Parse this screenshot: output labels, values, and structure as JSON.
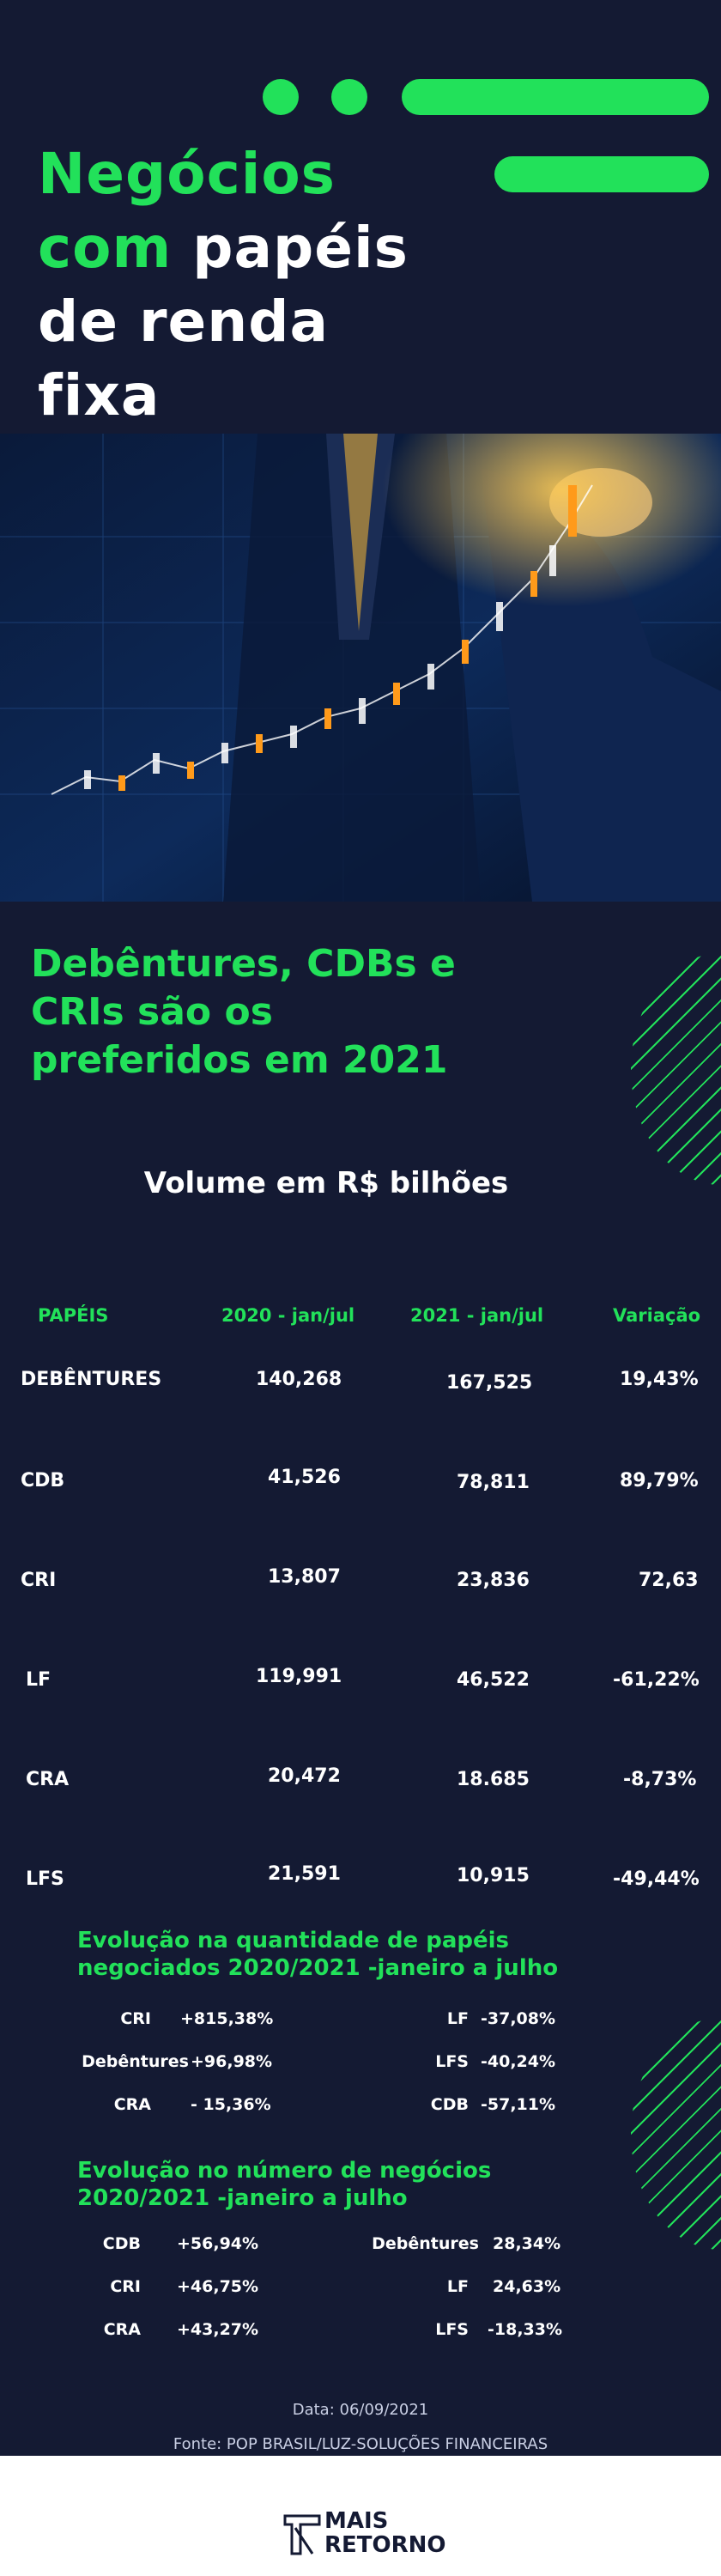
{
  "colors": {
    "background": "#141a33",
    "accent": "#22e15a",
    "text": "#ffffff"
  },
  "hero": {
    "title_line1": "Negócios",
    "title_line2_green": "com",
    "title_line2_white": "papéis",
    "title_line3": "de renda",
    "title_line4": "fixa"
  },
  "subtitle": {
    "line1": "Debêntures, CDBs e",
    "line2": "CRIs são os",
    "line3": "preferidos em 2021"
  },
  "table": {
    "title": "Volume em R$ bilhões",
    "headers": [
      "PAPÉIS",
      "2020 - jan/jul",
      "2021 - jan/jul",
      "Variação"
    ],
    "rows": [
      {
        "paper": "DEBÊNTURES",
        "v2020": "140,268",
        "v2021": "167,525",
        "var": "19,43%"
      },
      {
        "paper": "CDB",
        "v2020": "41,526",
        "v2021": "78,811",
        "var": "89,79%"
      },
      {
        "paper": "CRI",
        "v2020": "13,807",
        "v2021": "23,836",
        "var": "72,63"
      },
      {
        "paper": "LF",
        "v2020": "119,991",
        "v2021": "46,522",
        "var": "-61,22%"
      },
      {
        "paper": "CRA",
        "v2020": "20,472",
        "v2021": "18.685",
        "var": "-8,73%"
      },
      {
        "paper": "LFS",
        "v2020": "21,591",
        "v2021": "10,915",
        "var": "-49,44%"
      }
    ]
  },
  "quantity": {
    "title_line1": "Evolução na quantidade de papéis",
    "title_line2": "negociados 2020/2021 -janeiro a julho",
    "left": [
      {
        "name": "CRI",
        "value": "+815,38%"
      },
      {
        "name": "Debêntures",
        "value": "+96,98%"
      },
      {
        "name": "CRA",
        "value": "- 15,36%"
      }
    ],
    "right": [
      {
        "name": "LF",
        "value": "-37,08%"
      },
      {
        "name": "LFS",
        "value": "-40,24%"
      },
      {
        "name": "CDB",
        "value": "-57,11%"
      }
    ]
  },
  "deals": {
    "title_line1": "Evolução no número de negócios",
    "title_line2": "2020/2021 -janeiro a julho",
    "left": [
      {
        "name": "CDB",
        "value": "+56,94%"
      },
      {
        "name": "CRI",
        "value": "+46,75%"
      },
      {
        "name": "CRA",
        "value": "+43,27%"
      }
    ],
    "right": [
      {
        "name": "Debêntures",
        "value": "28,34%"
      },
      {
        "name": "LF",
        "value": "24,63%"
      },
      {
        "name": "LFS",
        "value": "-18,33%"
      }
    ]
  },
  "footer": {
    "date": "Data: 06/09/2021",
    "source": "Fonte: POP BRASIL/LUZ-SOLUÇÕES FINANCEIRAS"
  },
  "logo": {
    "line1": "MAIS",
    "line2": "RETORNO"
  }
}
